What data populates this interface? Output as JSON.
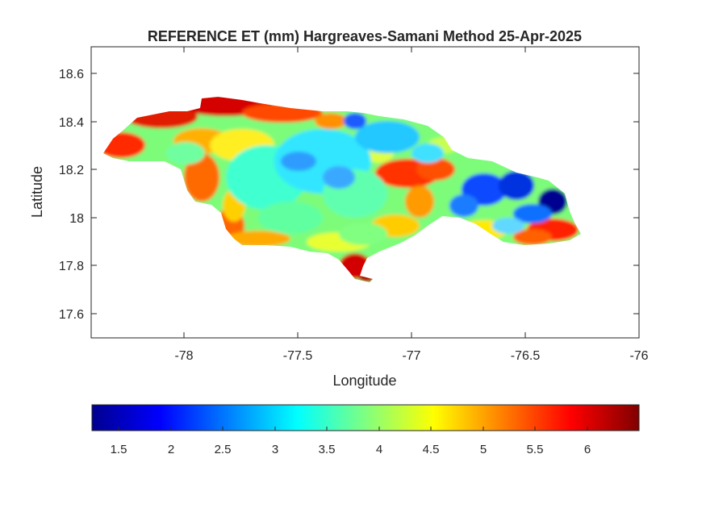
{
  "map": {
    "title": "REFERENCE ET (mm) Hargreaves-Samani Method  25-Apr-2025",
    "xlabel": "Longitude",
    "ylabel": "Latitude",
    "x_ticks": [
      "-78",
      "-77.5",
      "-77",
      "-76.5",
      "-76"
    ],
    "y_ticks": [
      "18.6",
      "18.4",
      "18.2",
      "18",
      "17.8",
      "17.6"
    ],
    "xlim": [
      -78.42,
      -76.0
    ],
    "ylim": [
      17.5,
      18.72
    ],
    "colormap": "jet",
    "colorbar": {
      "ticks": [
        "1.5",
        "2",
        "2.5",
        "3",
        "3.5",
        "4",
        "4.5",
        "5",
        "5.5",
        "6"
      ],
      "range": [
        1.25,
        6.5
      ],
      "stops": [
        "#00008f",
        "#0000ff",
        "#00ffff",
        "#ffff00",
        "#ff0000",
        "#800000"
      ]
    },
    "variable": "Reference ET",
    "units": "mm"
  }
}
